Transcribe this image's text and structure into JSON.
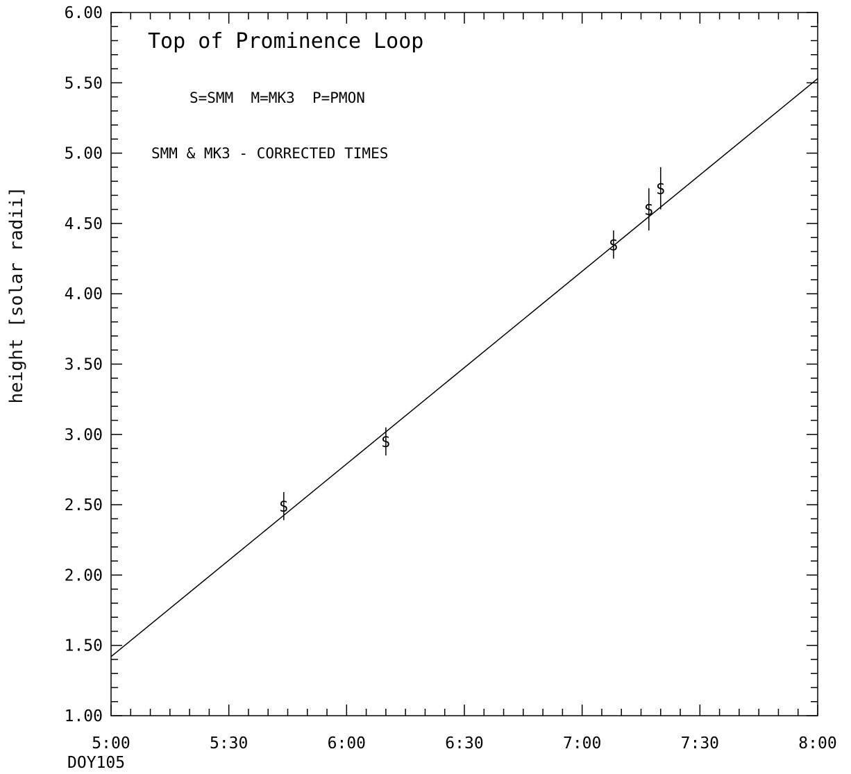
{
  "chart_data": {
    "type": "scatter",
    "title": "",
    "xlabel": "",
    "x_sublabel": "DOY105",
    "ylabel": "height [solar radii]",
    "xlim": [
      "5:00",
      "8:00"
    ],
    "ylim": [
      1.0,
      6.0
    ],
    "x_ticks": [
      "5:00",
      "5:30",
      "6:00",
      "6:30",
      "7:00",
      "7:30",
      "8:00"
    ],
    "y_ticks": [
      "1.00",
      "1.50",
      "2.00",
      "2.50",
      "3.00",
      "3.50",
      "4.00",
      "4.50",
      "5.00",
      "5.50",
      "6.00"
    ],
    "annotations": {
      "title_text": "Top of Prominence Loop",
      "legend_text": "S=SMM  M=MK3  P=PMON",
      "note_text": "SMM & MK3 - CORRECTED TIMES"
    },
    "series": [
      {
        "name": "SMM",
        "marker": "S",
        "points": [
          {
            "x": "5:44",
            "y": 2.49,
            "err": 0.1
          },
          {
            "x": "6:10",
            "y": 2.95,
            "err": 0.1
          },
          {
            "x": "7:08",
            "y": 4.35,
            "err": 0.1
          },
          {
            "x": "7:17",
            "y": 4.6,
            "err": 0.15
          },
          {
            "x": "7:20",
            "y": 4.75,
            "err": 0.15
          }
        ]
      }
    ],
    "fit_line": {
      "x": [
        "5:00",
        "8:00"
      ],
      "y": [
        1.42,
        5.53
      ]
    }
  }
}
